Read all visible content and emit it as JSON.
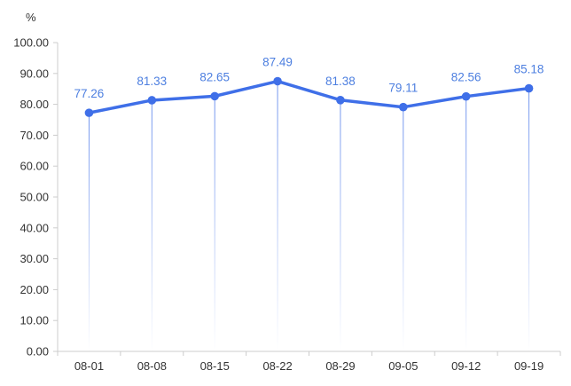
{
  "chart_data": {
    "type": "line",
    "y_unit": "%",
    "categories": [
      "08-01",
      "08-08",
      "08-15",
      "08-22",
      "08-29",
      "09-05",
      "09-12",
      "09-19"
    ],
    "series": [
      {
        "values": [
          77.26,
          81.33,
          82.65,
          87.49,
          81.38,
          79.11,
          82.56,
          85.18
        ]
      }
    ],
    "data_labels": [
      "77.26",
      "81.33",
      "82.65",
      "87.49",
      "81.38",
      "79.11",
      "82.56",
      "85.18"
    ],
    "ylim": [
      0,
      100
    ],
    "y_ticks": [
      "0.00",
      "10.00",
      "20.00",
      "30.00",
      "40.00",
      "50.00",
      "60.00",
      "70.00",
      "80.00",
      "90.00",
      "100.00"
    ],
    "grid": false,
    "colors": {
      "line": "#3f6fe8",
      "label": "#4d7fe0",
      "axis": "#cccccc",
      "drop_line": "#9fb8ec"
    }
  }
}
